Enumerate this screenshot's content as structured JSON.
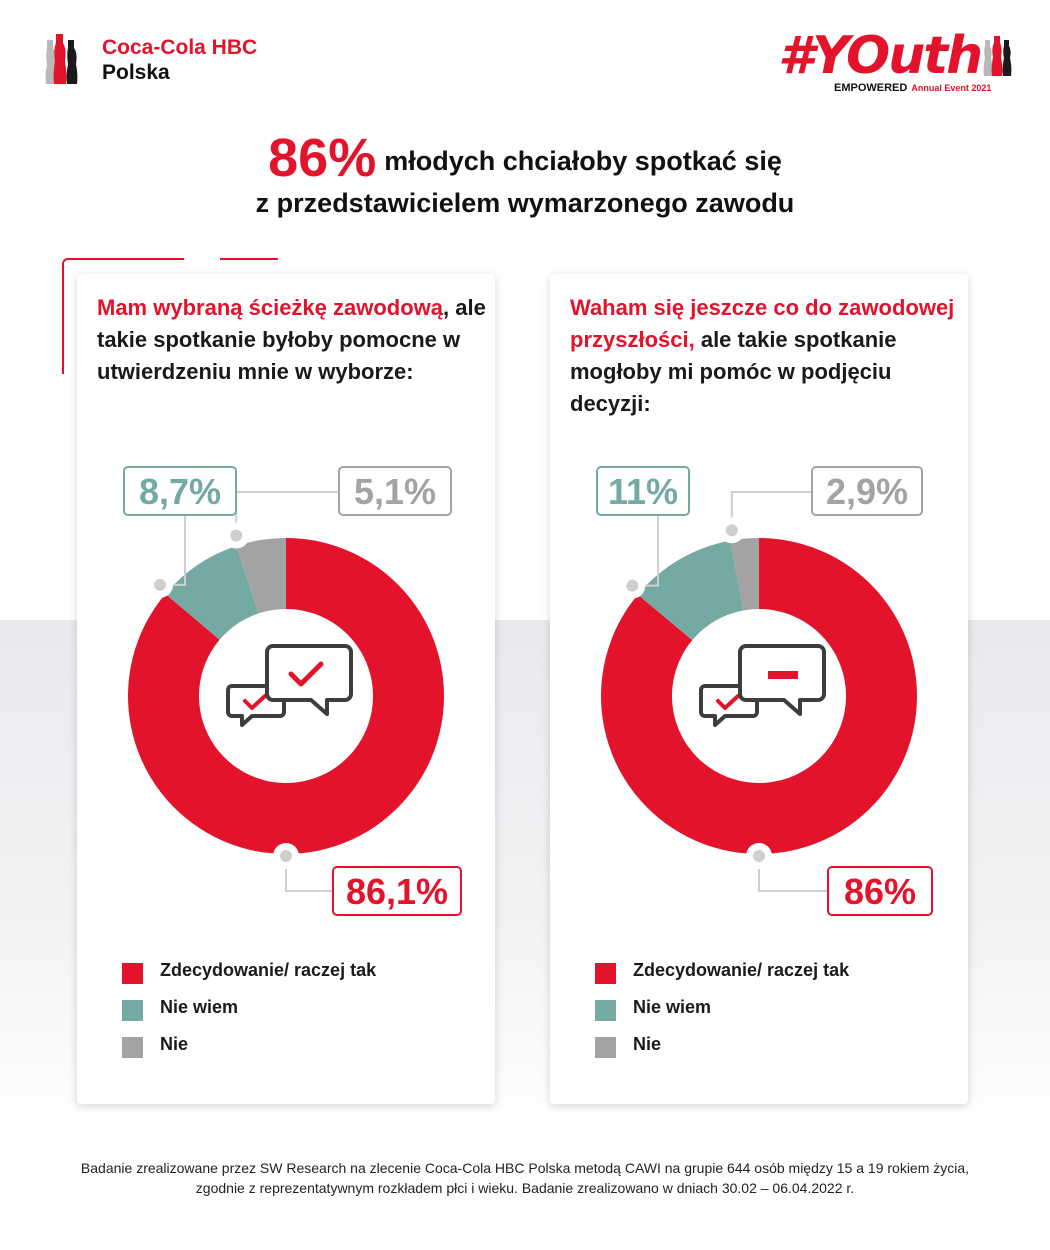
{
  "brand": {
    "name": "Coca-Cola HBC",
    "country": "Polska"
  },
  "event_logo": {
    "word": "#YOuth",
    "sub": "EMPOWERED",
    "event": "Annual Event 2021"
  },
  "headline": {
    "highlight": "86%",
    "line1": "młodych chciałoby spotkać się",
    "line2": "z przedstawicielem wymarzonego zawodu"
  },
  "colors": {
    "red": "#e3132b",
    "teal": "#74aaa3",
    "grey": "#a3a3a3"
  },
  "chart_data": [
    {
      "type": "pie",
      "title_highlight": "Mam wybraną ścieżkę zawodową",
      "title_rest": ", ale takie spotkanie byłoby pomocne w utwierdzeniu mnie w wyborze:",
      "categories": [
        "Zdecydowanie/ raczej tak",
        "Nie wiem",
        "Nie"
      ],
      "values": [
        86.1,
        8.7,
        5.1
      ],
      "labels": [
        "86,1%",
        "8,7%",
        "5,1%"
      ],
      "icon": "chat-check-icon"
    },
    {
      "type": "pie",
      "title_highlight": "Waham się jeszcze co do zawodowej przyszłości,",
      "title_rest": " ale takie spotkanie mogłoby mi pomóc w podjęciu decyzji:",
      "categories": [
        "Zdecydowanie/ raczej tak",
        "Nie wiem",
        "Nie"
      ],
      "values": [
        86,
        11,
        2.9
      ],
      "labels": [
        "86%",
        "11%",
        "2,9%"
      ],
      "icon": "chat-minus-icon"
    }
  ],
  "legend": [
    "Zdecydowanie/ raczej tak",
    "Nie wiem",
    "Nie"
  ],
  "footnote": "Badanie zrealizowane przez SW Research na zlecenie Coca-Cola HBC Polska metodą CAWI na grupie 644 osób między 15 a 19 rokiem życia, zgodnie z reprezentatywnym rozkładem płci i wieku. Badanie zrealizowano w dniach 30.02 – 06.04.2022 r."
}
